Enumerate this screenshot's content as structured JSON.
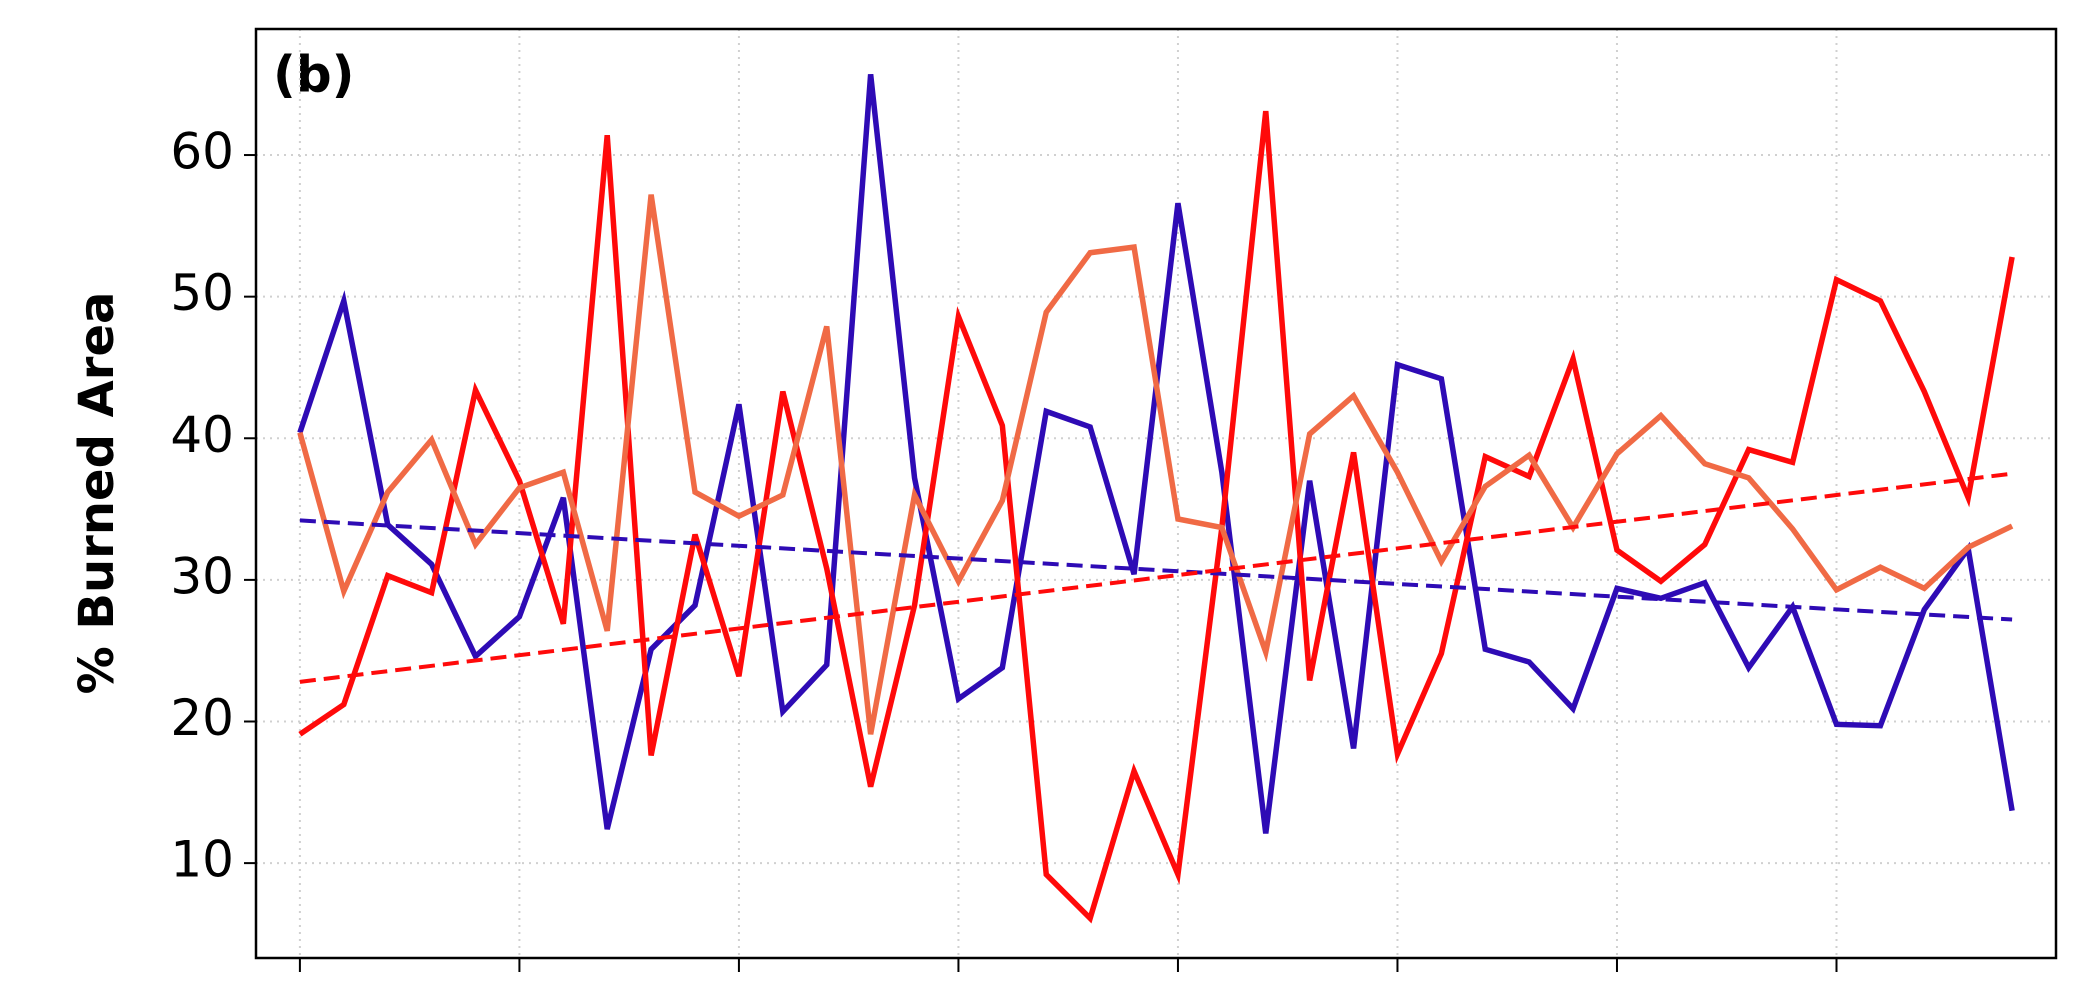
{
  "chart_data": {
    "type": "line",
    "annotation": "(b)",
    "y_label": "% Burned Area",
    "categories": [
      null,
      null,
      null,
      null,
      null,
      null,
      null,
      null,
      null,
      null,
      null,
      null,
      null,
      null,
      null,
      null,
      null,
      null,
      null,
      null,
      null,
      null,
      null,
      null,
      null,
      null,
      null,
      null,
      null,
      null,
      null,
      null,
      null,
      null,
      null,
      null,
      null,
      null,
      null,
      null
    ],
    "series": [
      {
        "color": "#2e0bb5",
        "values": [
          40.4,
          49.7,
          33.9,
          31.1,
          24.6,
          27.4,
          35.8,
          12.4,
          25.1,
          28.2,
          42.4,
          20.7,
          24.0,
          65.7,
          37.2,
          21.6,
          23.8,
          41.9,
          40.8,
          30.4,
          56.6,
          37.6,
          12.1,
          37.0,
          18.1,
          45.2,
          44.2,
          25.1,
          24.2,
          20.9,
          29.4,
          28.7,
          29.8,
          23.8,
          28.1,
          19.8,
          19.7,
          27.9,
          32.2,
          13.7
        ]
      },
      {
        "color": "#ff0a0a",
        "values": [
          19.1,
          21.2,
          30.3,
          29.1,
          43.4,
          37.0,
          26.9,
          61.4,
          17.6,
          33.2,
          23.2,
          43.3,
          30.8,
          15.4,
          28.2,
          48.6,
          40.9,
          9.2,
          6.1,
          16.5,
          9.2,
          33.7,
          63.1,
          22.9,
          39.0,
          17.7,
          24.8,
          38.7,
          37.3,
          45.6,
          32.1,
          29.9,
          32.5,
          39.2,
          38.3,
          51.2,
          49.7,
          43.3,
          35.8,
          52.8
        ]
      },
      {
        "color": "#f06a45",
        "values": [
          40.4,
          29.2,
          36.2,
          39.9,
          32.5,
          36.5,
          37.6,
          26.4,
          57.2,
          36.2,
          34.5,
          36.0,
          47.9,
          19.1,
          36.0,
          29.9,
          35.6,
          48.9,
          53.1,
          53.5,
          34.3,
          33.7,
          24.9,
          40.3,
          43.0,
          37.6,
          31.3,
          36.6,
          38.8,
          33.7,
          38.9,
          41.6,
          38.2,
          37.2,
          33.6,
          29.3,
          30.9,
          29.4,
          32.3,
          33.8
        ]
      }
    ],
    "trends": [
      {
        "color": "#2e0bb5",
        "values": [
          34.2,
          27.2
        ]
      },
      {
        "color": "#ff0a0a",
        "values": [
          22.8,
          37.5
        ]
      }
    ],
    "ylim": [
      3.3,
      68.9
    ],
    "yticks": [
      10,
      20,
      30,
      40,
      50,
      60
    ],
    "grid": true
  }
}
